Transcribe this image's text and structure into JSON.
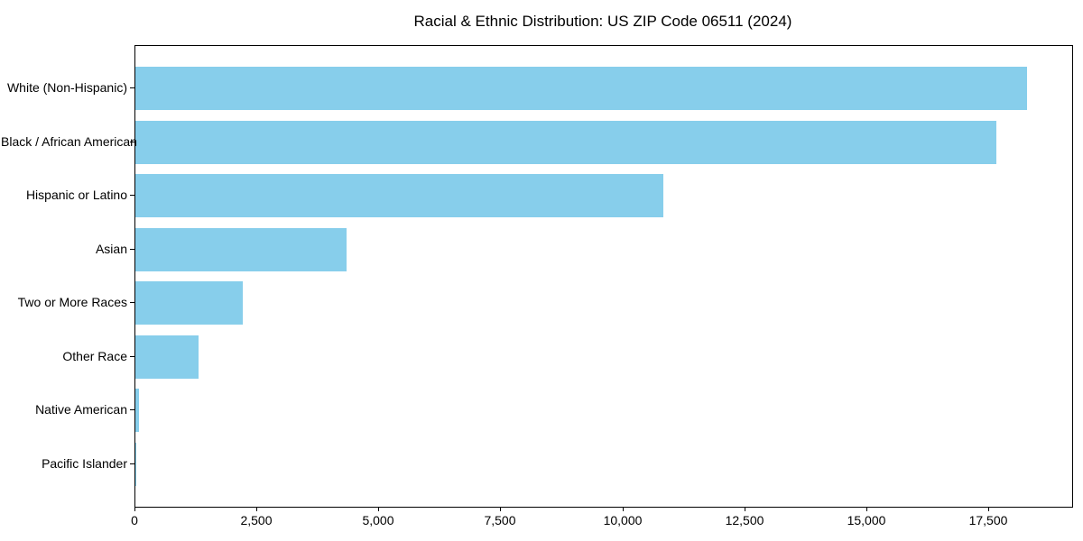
{
  "chart_data": {
    "type": "bar",
    "orientation": "horizontal",
    "title": "Racial & Ethnic Distribution: US ZIP Code 06511 (2024)",
    "categories": [
      "White (Non-Hispanic)",
      "Black / African American",
      "Hispanic or Latino",
      "Asian",
      "Two or More Races",
      "Other Race",
      "Native American",
      "Pacific Islander"
    ],
    "values": [
      18280,
      17650,
      10830,
      4330,
      2200,
      1300,
      70,
      10
    ],
    "xlabel": "",
    "ylabel": "",
    "xlim": [
      0,
      19200
    ],
    "x_ticks": [
      0,
      2500,
      5000,
      7500,
      10000,
      12500,
      15000,
      17500
    ],
    "x_tick_labels": [
      "0",
      "2,500",
      "5,000",
      "7,500",
      "10,000",
      "12,500",
      "15,000",
      "17,500"
    ],
    "bar_color": "#87CEEB",
    "grid": false,
    "legend": "none",
    "background_color": "#ffffff",
    "spine_color": "#000000"
  }
}
